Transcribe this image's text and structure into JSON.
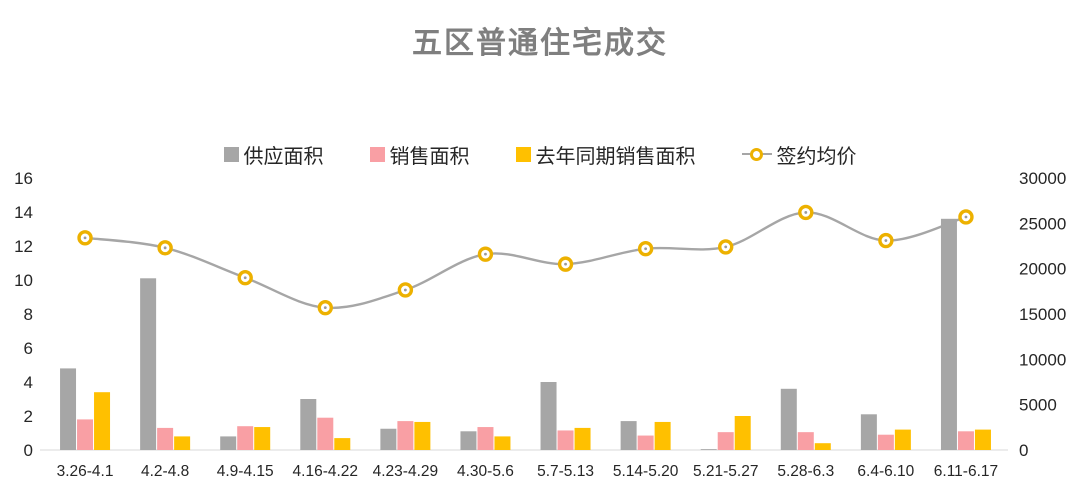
{
  "title": "五区普通住宅成交",
  "chart_data": {
    "type": "bar+line combo",
    "title": "五区普通住宅成交",
    "categories": [
      "3.26-4.1",
      "4.2-4.8",
      "4.9-4.15",
      "4.16-4.22",
      "4.23-4.29",
      "4.30-5.6",
      "5.7-5.13",
      "5.14-5.20",
      "5.21-5.27",
      "5.28-6.3",
      "6.4-6.10",
      "6.11-6.17"
    ],
    "series": [
      {
        "name": "供应面积",
        "type": "bar",
        "axis": "left",
        "color": "#a6a6a6",
        "values": [
          4.8,
          10.1,
          0.8,
          3.0,
          1.25,
          1.1,
          4.0,
          1.7,
          0.05,
          3.6,
          2.1,
          13.6
        ]
      },
      {
        "name": "销售面积",
        "type": "bar",
        "axis": "left",
        "color": "#f99fa4",
        "values": [
          1.8,
          1.3,
          1.4,
          1.9,
          1.7,
          1.35,
          1.15,
          0.85,
          1.05,
          1.05,
          0.9,
          1.1
        ]
      },
      {
        "name": "去年同期销售面积",
        "type": "bar",
        "axis": "left",
        "color": "#ffc000",
        "values": [
          3.4,
          0.8,
          1.35,
          0.7,
          1.65,
          0.8,
          1.3,
          1.65,
          2.0,
          0.4,
          1.2,
          1.2
        ]
      },
      {
        "name": "签约均价",
        "type": "line",
        "axis": "right",
        "color": "#a6a6a6",
        "marker": "circle-ring",
        "marker_color": "#edb100",
        "values": [
          23400,
          22300,
          19000,
          15700,
          17650,
          21600,
          20500,
          22200,
          22400,
          26200,
          23100,
          25700
        ]
      }
    ],
    "left_axis": {
      "min": 0,
      "max": 16,
      "step": 2,
      "tick_labels": [
        "0",
        "2",
        "4",
        "6",
        "8",
        "10",
        "12",
        "14",
        "16"
      ]
    },
    "right_axis": {
      "min": 0,
      "max": 30000,
      "step": 5000,
      "tick_labels": [
        "0",
        "5000",
        "10000",
        "15000",
        "20000",
        "25000",
        "30000"
      ]
    },
    "grid": false,
    "legend_position": "top",
    "axis_line_color": "#d9d9d9",
    "smooth_line": true
  }
}
